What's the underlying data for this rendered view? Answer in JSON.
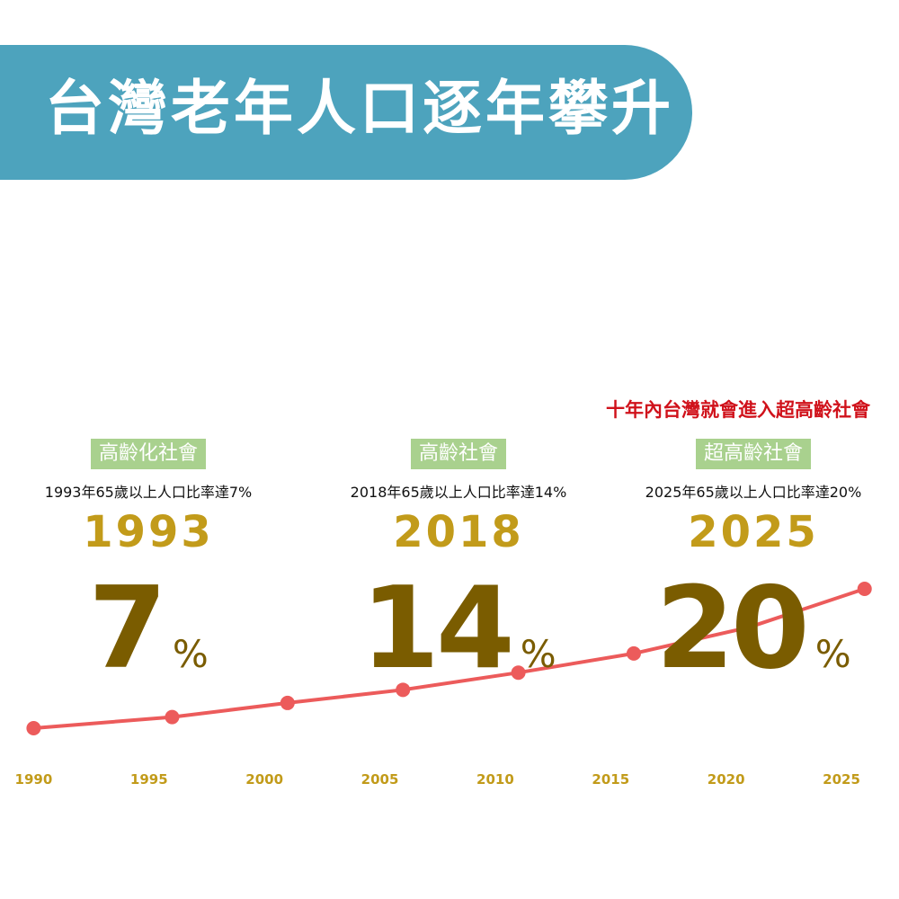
{
  "banner": {
    "title": "台灣老年人口逐年攀升"
  },
  "callout": "十年內台灣就會進入超高齡社會",
  "milestones": [
    {
      "badge": "高齡化社會",
      "description": "1993年65歲以上人口比率達7%",
      "year": "1993",
      "value": "7",
      "unit": "%"
    },
    {
      "badge": "高齡社會",
      "description": "2018年65歲以上人口比率達14%",
      "year": "2018",
      "value": "14",
      "unit": "%"
    },
    {
      "badge": "超高齡社會",
      "description": "2025年65歲以上人口比率達20%",
      "year": "2025",
      "value": "20",
      "unit": "%"
    }
  ],
  "chart_data": {
    "type": "line",
    "x_ticks": [
      "1990",
      "1995",
      "2000",
      "2005",
      "2010",
      "2015",
      "2020",
      "2025"
    ],
    "series": [
      {
        "x": [
          1990,
          1996,
          2001,
          2006,
          2011,
          2016,
          2021,
          2026
        ],
        "y": [
          6.2,
          7.3,
          8.7,
          10.0,
          11.7,
          13.6,
          16.2,
          20.0
        ]
      }
    ],
    "xlim": [
      1989.4,
      2026.4
    ],
    "ylim": [
      6.2,
      20.0
    ],
    "line_color": "#ec5b5b",
    "tick_color": "#c29b1a",
    "grid": false,
    "legend": false
  }
}
